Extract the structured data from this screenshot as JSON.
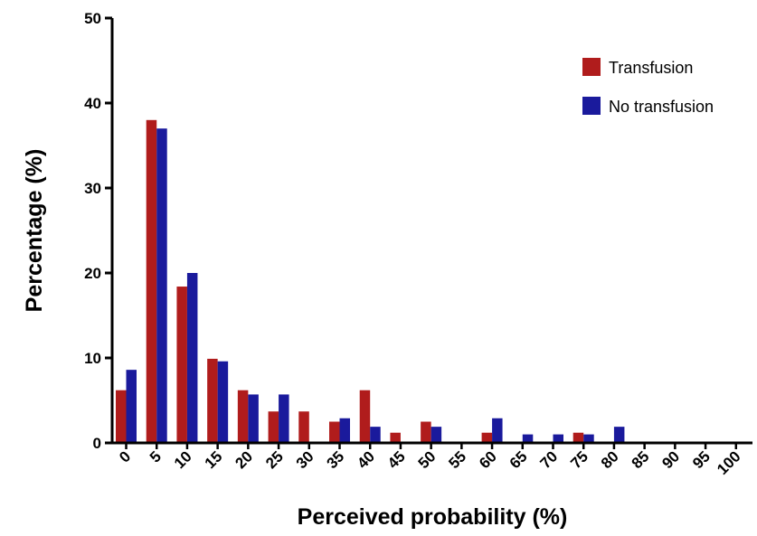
{
  "chart_data": {
    "type": "bar",
    "title": "",
    "xlabel": "Perceived probability (%)",
    "ylabel": "Percentage (%)",
    "ylim": [
      0,
      50
    ],
    "yticks": [
      0,
      10,
      20,
      30,
      40,
      50
    ],
    "grid": false,
    "legend_position": "top-right",
    "categories": [
      "0",
      "5",
      "10",
      "15",
      "20",
      "25",
      "30",
      "35",
      "40",
      "45",
      "50",
      "55",
      "60",
      "65",
      "70",
      "75",
      "80",
      "85",
      "90",
      "95",
      "100"
    ],
    "series": [
      {
        "name": "Transfusion",
        "color": "#b01c1c",
        "values": [
          6.2,
          38,
          18.4,
          9.9,
          6.2,
          3.7,
          3.7,
          2.5,
          6.2,
          1.2,
          2.5,
          0,
          1.2,
          0,
          0,
          1.2,
          0,
          0,
          0,
          0,
          0
        ]
      },
      {
        "name": "No transfusion",
        "color": "#1a1a9c",
        "values": [
          8.6,
          37,
          20,
          9.6,
          5.7,
          5.7,
          0,
          2.9,
          1.9,
          0,
          1.9,
          0,
          2.9,
          1.0,
          1.0,
          1.0,
          1.9,
          0,
          0,
          0,
          0
        ]
      }
    ]
  }
}
